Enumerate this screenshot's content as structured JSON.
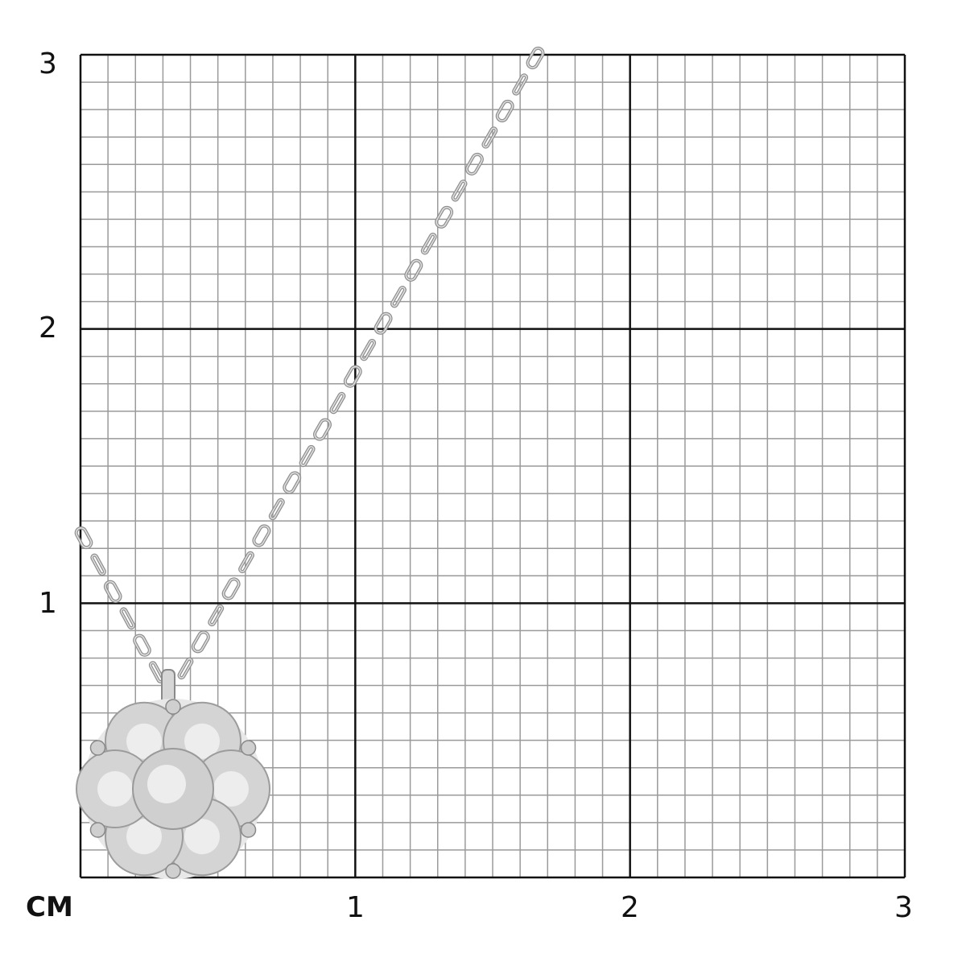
{
  "scale": {
    "unit_label": "CM",
    "x_labels": [
      "1",
      "2",
      "3"
    ],
    "y_labels": [
      "1",
      "2",
      "3"
    ],
    "range_cm": [
      0,
      3
    ],
    "minor_divisions_per_cm": 10
  },
  "colors": {
    "major_grid": "#111111",
    "minor_grid": "#9a9a9a",
    "metal": "#b8b8b8"
  }
}
